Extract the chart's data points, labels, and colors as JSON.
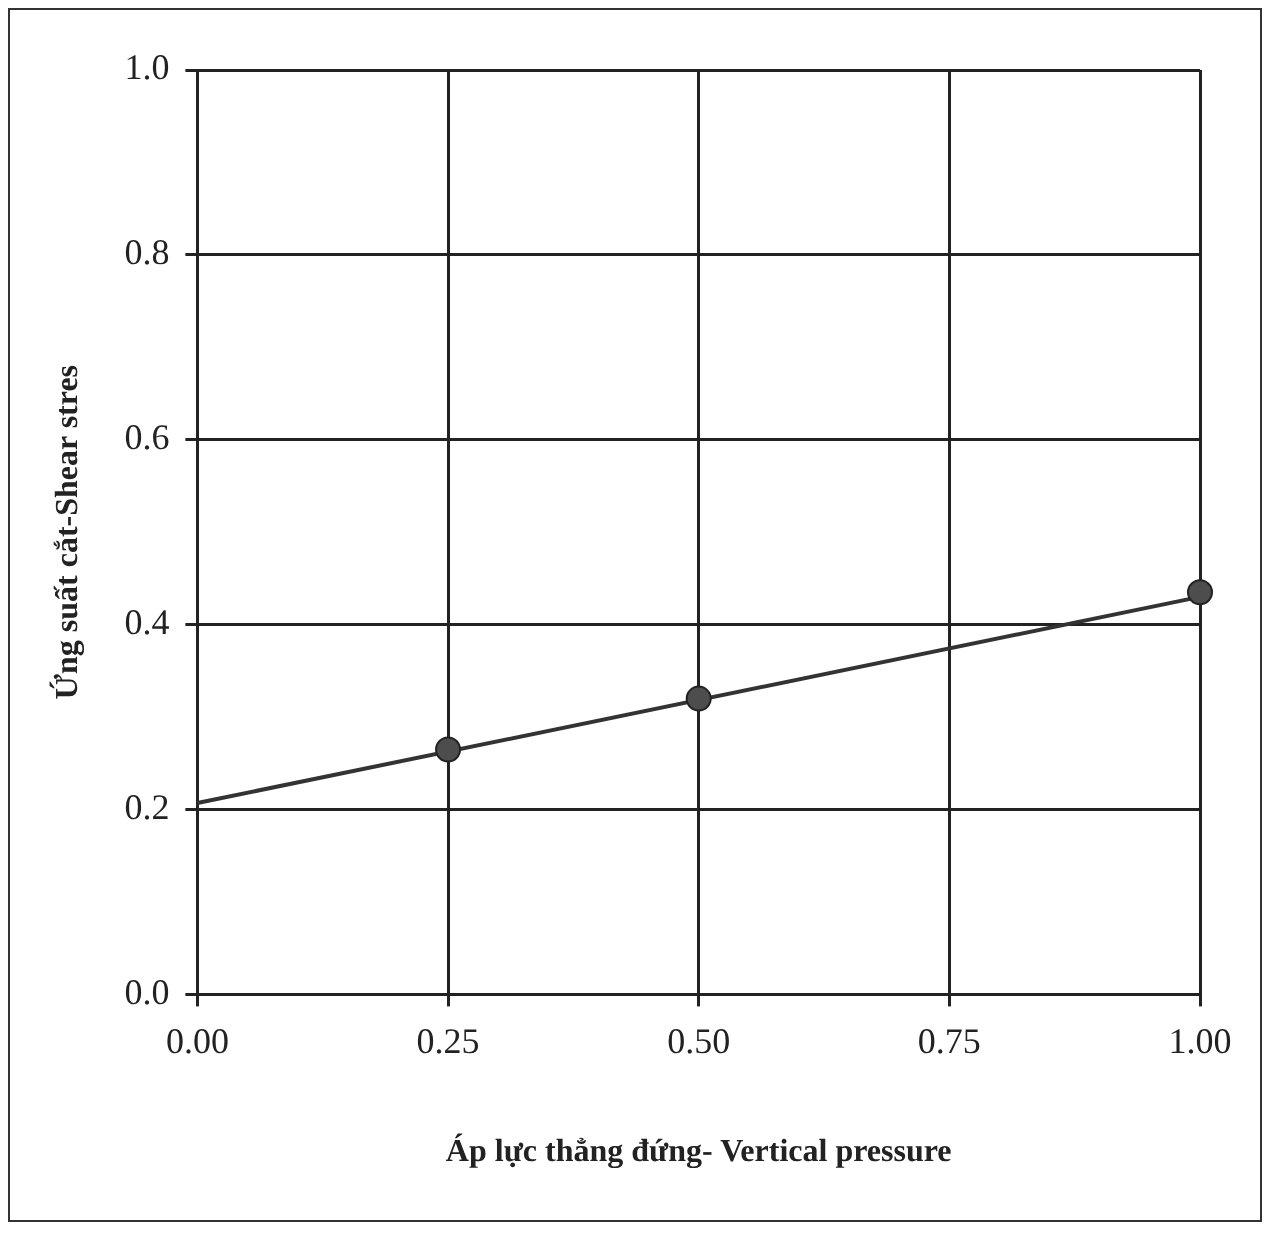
{
  "chart_data": {
    "type": "scatter",
    "xlabel": "Áp lực thẳng đứng- Vertical pressure",
    "ylabel": "Ứng suất cắt-Shear stres",
    "series": [
      {
        "type": "scatter",
        "color": "#4d4d4d",
        "x": [
          0.25,
          0.5,
          1.0
        ],
        "values": [
          0.265,
          0.32,
          0.435
        ],
        "marker": "circle"
      },
      {
        "type": "line",
        "color": "#333333",
        "x": [
          0,
          1.0
        ],
        "values": [
          0.207,
          0.43
        ],
        "marker": "none"
      }
    ],
    "xlim": [
      0,
      1.0
    ],
    "xticks": [
      {
        "value": 0,
        "label": "0.00"
      },
      {
        "value": 0.25,
        "label": "0.25"
      },
      {
        "value": 0.5,
        "label": "0.50"
      },
      {
        "value": 0.75,
        "label": "0.75"
      },
      {
        "value": 1.0,
        "label": "1.00"
      }
    ],
    "ylim": [
      0,
      1.0
    ],
    "yticks": [
      {
        "value": 0,
        "label": "0.0"
      },
      {
        "value": 0.2,
        "label": "0.2"
      },
      {
        "value": 0.4,
        "label": "0.4"
      },
      {
        "value": 0.6,
        "label": "0.6"
      },
      {
        "value": 0.8,
        "label": "0.8"
      },
      {
        "value": 1.0,
        "label": "1.0"
      }
    ],
    "grid": true,
    "legend": false
  }
}
